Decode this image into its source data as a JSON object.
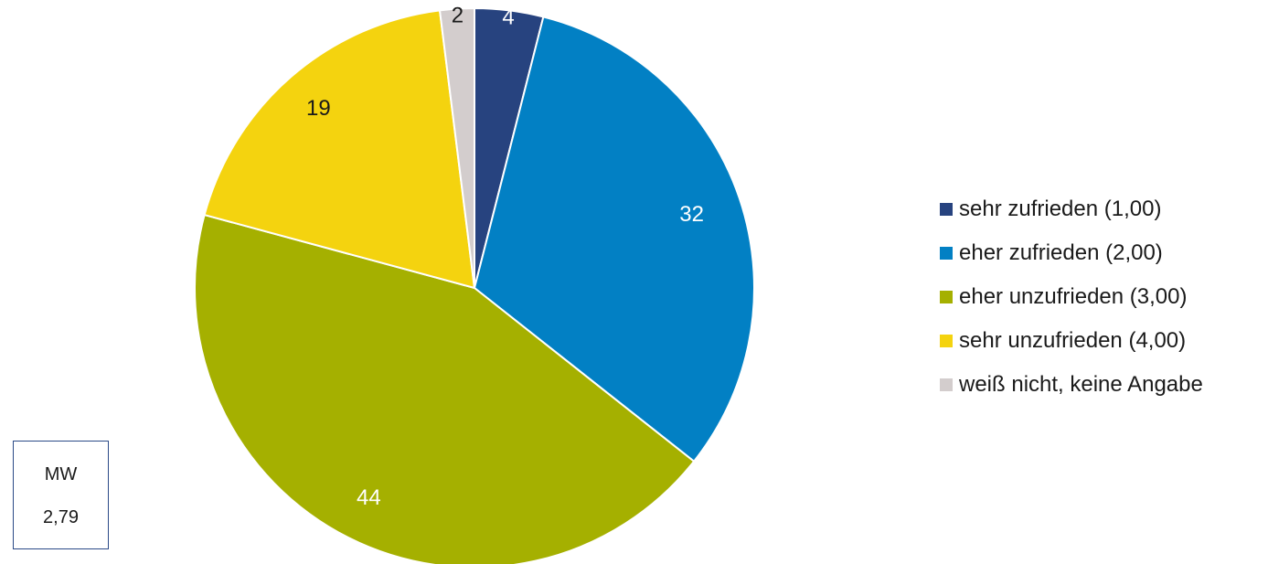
{
  "chart_data": {
    "type": "pie",
    "slices": [
      {
        "label": "sehr zufrieden (1,00)",
        "value": 4,
        "value_label": "4",
        "color": "#27437f",
        "label_color": "#ffffff"
      },
      {
        "label": "eher zufrieden (2,00)",
        "value": 32,
        "value_label": "32",
        "color": "#0280c4",
        "label_color": "#ffffff"
      },
      {
        "label": "eher unzufrieden (3,00)",
        "value": 44,
        "value_label": "44",
        "color": "#a5b000",
        "label_color": "#ffffff"
      },
      {
        "label": "sehr unzufrieden (4,00)",
        "value": 19,
        "value_label": "19",
        "color": "#f4d30f",
        "label_color": "#1a1a1a"
      },
      {
        "label": "weiß nicht, keine Angabe",
        "value": 2,
        "value_label": "2",
        "color": "#d3cdcd",
        "label_color": "#1a1a1a"
      }
    ],
    "start": "12 o'clock",
    "direction": "clockwise",
    "legend_position": "right"
  },
  "mean_box": {
    "label": "MW",
    "value": "2,79"
  }
}
